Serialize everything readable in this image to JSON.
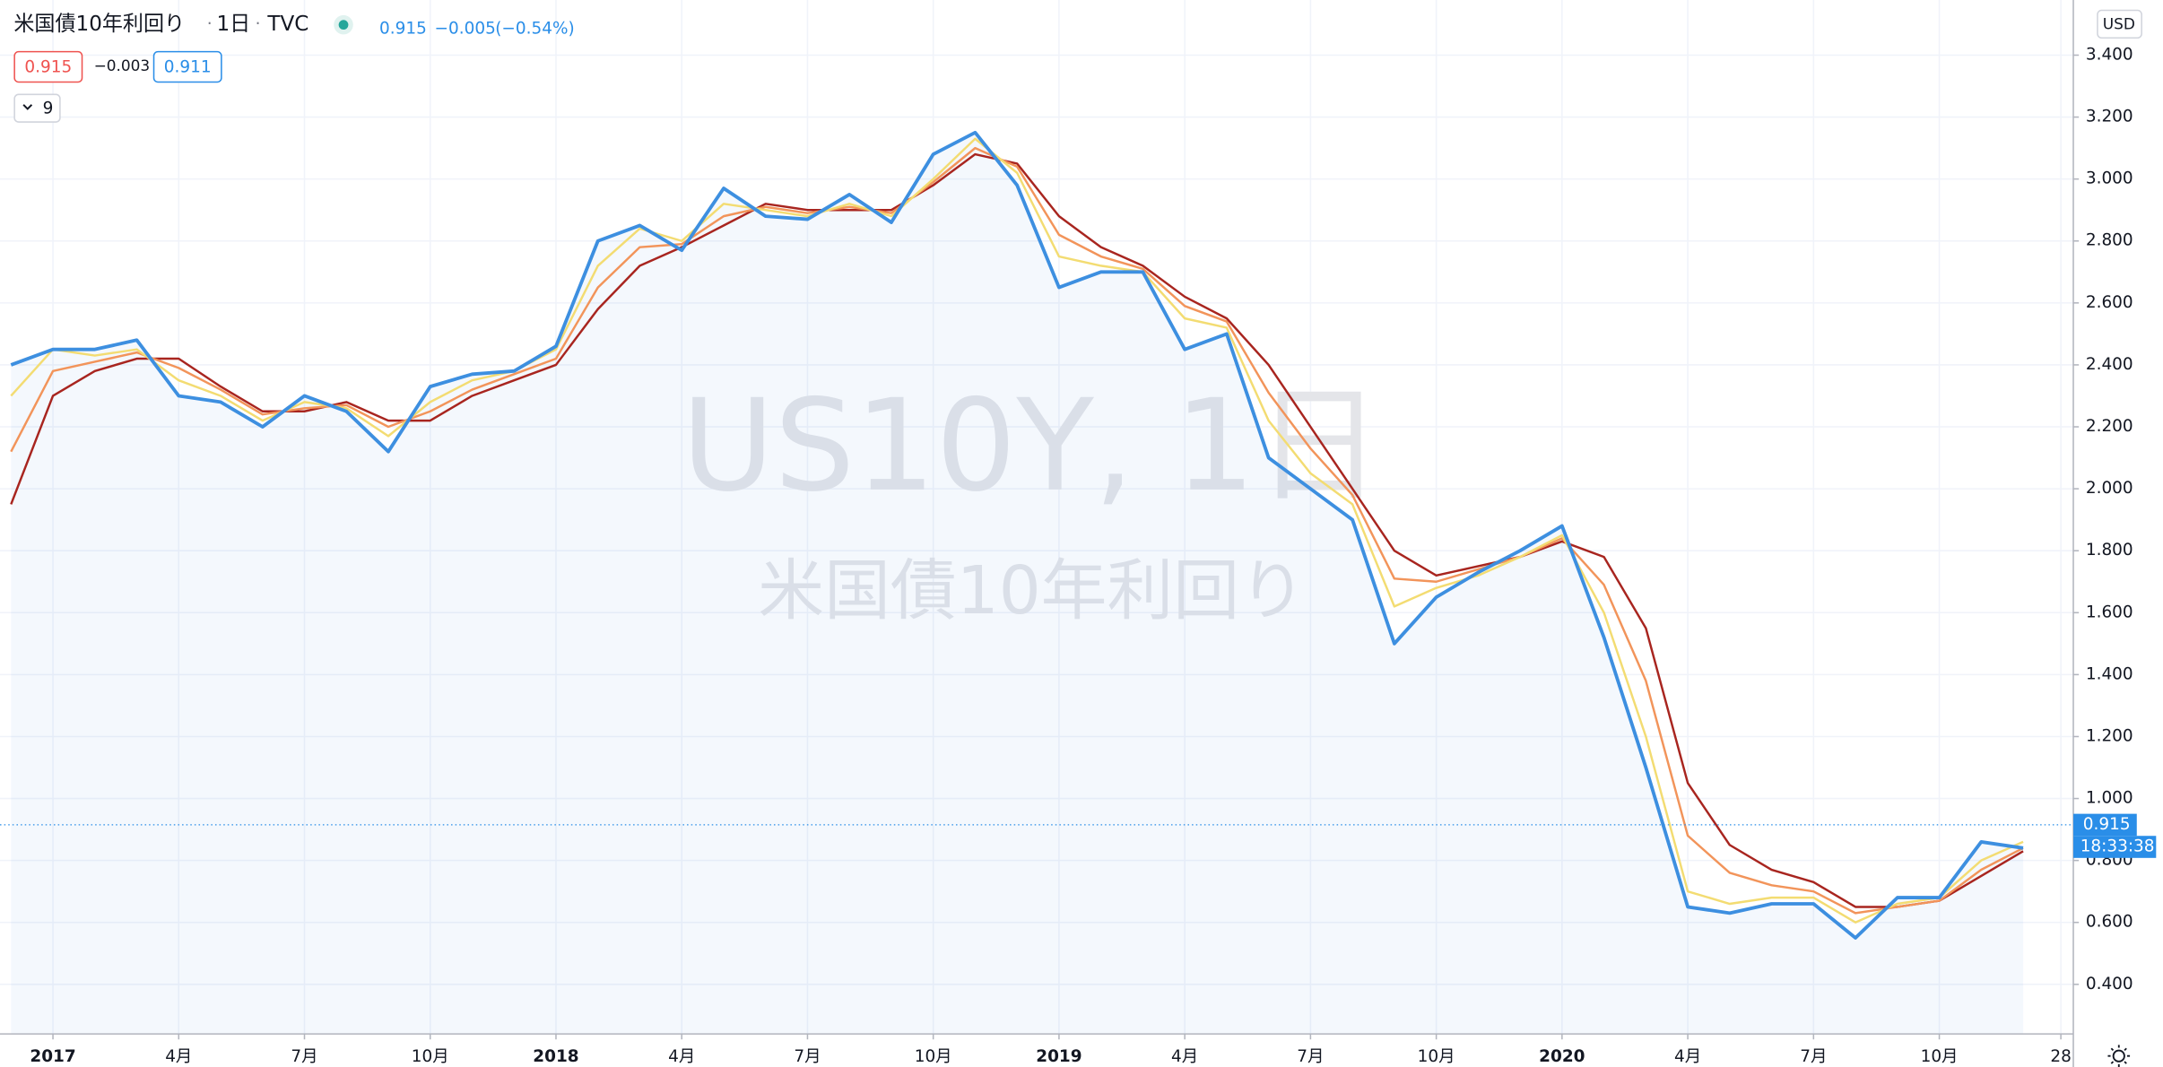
{
  "header": {
    "symbol": "米国債10年利回り",
    "interval": "1日",
    "exchange": "TVC",
    "last": "0.915",
    "change": "−0.005",
    "change_pct": "(−0.54%)"
  },
  "indicator": {
    "value1": "0.915",
    "diff": "−0.003",
    "value2": "0.911",
    "collapse": "9"
  },
  "watermark": {
    "symbol": "US10Y, 1日",
    "description": "米国債10年利回り"
  },
  "currency": "USD",
  "countdown": "18:33:38",
  "chart_data": {
    "type": "line",
    "grid": true,
    "x": [
      "2016-12",
      "2017-01",
      "2017-02",
      "2017-03",
      "2017-04",
      "2017-05",
      "2017-06",
      "2017-07",
      "2017-08",
      "2017-09",
      "2017-10",
      "2017-11",
      "2017-12",
      "2018-01",
      "2018-02",
      "2018-03",
      "2018-04",
      "2018-05",
      "2018-06",
      "2018-07",
      "2018-08",
      "2018-09",
      "2018-10",
      "2018-11",
      "2018-12",
      "2019-01",
      "2019-02",
      "2019-03",
      "2019-04",
      "2019-05",
      "2019-06",
      "2019-07",
      "2019-08",
      "2019-09",
      "2019-10",
      "2019-11",
      "2019-12",
      "2020-01",
      "2020-02",
      "2020-03",
      "2020-04",
      "2020-05",
      "2020-06",
      "2020-07",
      "2020-08",
      "2020-09",
      "2020-10",
      "2020-11",
      "2020-12"
    ],
    "series": [
      {
        "color": "#3d8fe0",
        "area": true,
        "values": [
          2.4,
          2.45,
          2.45,
          2.48,
          2.3,
          2.28,
          2.2,
          2.3,
          2.25,
          2.12,
          2.33,
          2.37,
          2.38,
          2.46,
          2.8,
          2.85,
          2.77,
          2.97,
          2.88,
          2.87,
          2.95,
          2.86,
          3.08,
          3.15,
          2.98,
          2.65,
          2.7,
          2.7,
          2.45,
          2.5,
          2.1,
          2.0,
          1.9,
          1.5,
          1.65,
          1.73,
          1.8,
          1.88,
          1.52,
          1.1,
          0.65,
          0.63,
          0.66,
          0.66,
          0.55,
          0.68,
          0.68,
          0.86,
          0.84
        ]
      },
      {
        "color": "#f3dc72",
        "values": [
          2.3,
          2.45,
          2.43,
          2.45,
          2.35,
          2.3,
          2.22,
          2.28,
          2.26,
          2.17,
          2.28,
          2.35,
          2.38,
          2.45,
          2.72,
          2.84,
          2.8,
          2.92,
          2.9,
          2.88,
          2.92,
          2.88,
          3.0,
          3.13,
          3.02,
          2.75,
          2.72,
          2.7,
          2.55,
          2.52,
          2.22,
          2.05,
          1.95,
          1.62,
          1.68,
          1.72,
          1.78,
          1.85,
          1.6,
          1.2,
          0.7,
          0.66,
          0.68,
          0.68,
          0.6,
          0.66,
          0.68,
          0.8,
          0.86
        ]
      },
      {
        "color": "#f2945a",
        "values": [
          2.12,
          2.38,
          2.41,
          2.44,
          2.39,
          2.32,
          2.24,
          2.26,
          2.27,
          2.2,
          2.25,
          2.32,
          2.37,
          2.42,
          2.65,
          2.78,
          2.79,
          2.88,
          2.91,
          2.89,
          2.91,
          2.89,
          2.99,
          3.1,
          3.04,
          2.82,
          2.75,
          2.71,
          2.59,
          2.54,
          2.31,
          2.13,
          1.98,
          1.71,
          1.7,
          1.74,
          1.78,
          1.84,
          1.69,
          1.38,
          0.88,
          0.76,
          0.72,
          0.7,
          0.63,
          0.65,
          0.67,
          0.77,
          0.84
        ]
      },
      {
        "color": "#a8251f",
        "values": [
          1.95,
          2.3,
          2.38,
          2.42,
          2.42,
          2.33,
          2.25,
          2.25,
          2.28,
          2.22,
          2.22,
          2.3,
          2.35,
          2.4,
          2.58,
          2.72,
          2.78,
          2.85,
          2.92,
          2.9,
          2.9,
          2.9,
          2.98,
          3.08,
          3.05,
          2.88,
          2.78,
          2.72,
          2.62,
          2.55,
          2.4,
          2.2,
          2.0,
          1.8,
          1.72,
          1.75,
          1.78,
          1.83,
          1.78,
          1.55,
          1.05,
          0.85,
          0.77,
          0.73,
          0.65,
          0.65,
          0.67,
          0.75,
          0.83
        ]
      }
    ],
    "last_price": {
      "value": 0.915,
      "label": "0.915"
    },
    "xlim": [
      "2016-12",
      "2021-01"
    ],
    "xticks": [
      {
        "value": "2017-01",
        "label": "2017"
      },
      {
        "value": "2017-04",
        "label": "4月"
      },
      {
        "value": "2017-07",
        "label": "7月"
      },
      {
        "value": "2017-10",
        "label": "10月"
      },
      {
        "value": "2018-01",
        "label": "2018"
      },
      {
        "value": "2018-04",
        "label": "4月"
      },
      {
        "value": "2018-07",
        "label": "7月"
      },
      {
        "value": "2018-10",
        "label": "10月"
      },
      {
        "value": "2019-01",
        "label": "2019"
      },
      {
        "value": "2019-04",
        "label": "4月"
      },
      {
        "value": "2019-07",
        "label": "7月"
      },
      {
        "value": "2019-10",
        "label": "10月"
      },
      {
        "value": "2020-01",
        "label": "2020"
      },
      {
        "value": "2020-04",
        "label": "4月"
      },
      {
        "value": "2020-07",
        "label": "7月"
      },
      {
        "value": "2020-10",
        "label": "10月"
      },
      {
        "value": "2020-12-28",
        "label": "28"
      }
    ],
    "ylim": [
      0.24,
      3.578
    ],
    "yticks": [
      {
        "value": 0.4,
        "label": "0.400"
      },
      {
        "value": 0.6,
        "label": "0.600"
      },
      {
        "value": 0.8,
        "label": "0.800"
      },
      {
        "value": 1.0,
        "label": "1.000"
      },
      {
        "value": 1.2,
        "label": "1.200"
      },
      {
        "value": 1.4,
        "label": "1.400"
      },
      {
        "value": 1.6,
        "label": "1.600"
      },
      {
        "value": 1.8,
        "label": "1.800"
      },
      {
        "value": 2.0,
        "label": "2.000"
      },
      {
        "value": 2.2,
        "label": "2.200"
      },
      {
        "value": 2.4,
        "label": "2.400"
      },
      {
        "value": 2.6,
        "label": "2.600"
      },
      {
        "value": 2.8,
        "label": "2.800"
      },
      {
        "value": 3.0,
        "label": "3.000"
      },
      {
        "value": 3.2,
        "label": "3.200"
      },
      {
        "value": 3.4,
        "label": "3.400"
      }
    ]
  }
}
